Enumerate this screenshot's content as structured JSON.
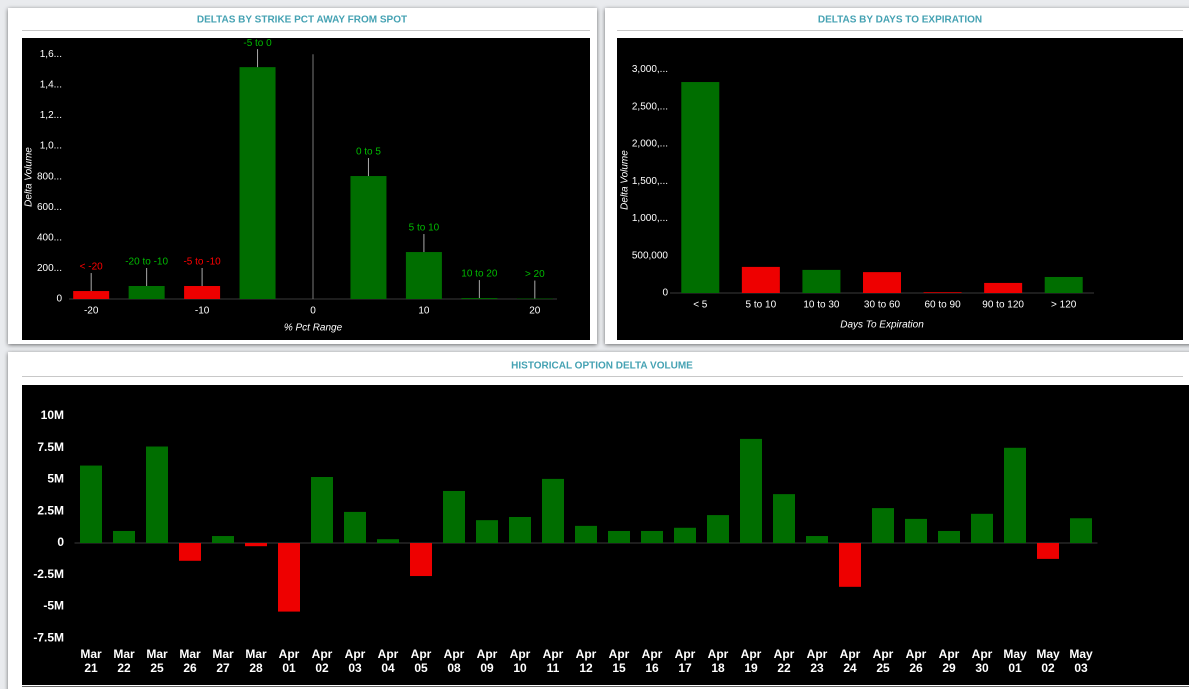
{
  "chart_data": [
    {
      "type": "bar",
      "title": "DELTAS BY STRIKE PCT AWAY FROM SPOT",
      "x_label": "% Pct Range",
      "y_label": "Delta Volume",
      "x": [
        -20,
        -15,
        -10,
        -5,
        5,
        10,
        15,
        20
      ],
      "labels": [
        "< -20",
        "-20 to -10",
        "-5 to -10",
        "-5 to 0",
        "0 to 5",
        "5 to 10",
        "10 to 20",
        "> 20"
      ],
      "values": [
        52000,
        85000,
        85000,
        1516000,
        804000,
        307000,
        6000,
        3000
      ],
      "colors": [
        "#ee0000",
        "#006e00",
        "#ee0000",
        "#006e00",
        "#006e00",
        "#006e00",
        "#006e00",
        "#006e00"
      ],
      "xlim": [
        -22,
        22
      ],
      "xticks": [
        -20,
        -10,
        0,
        10,
        20
      ],
      "ylim": [
        0,
        1700000
      ],
      "yticks": [
        0,
        {
          "value": 200000,
          "label": "200..."
        },
        {
          "value": 400000,
          "label": "400..."
        },
        {
          "value": 600000,
          "label": "600..."
        },
        {
          "value": 800000,
          "label": "800..."
        },
        {
          "value": 1000000,
          "label": "1,0..."
        },
        {
          "value": 1200000,
          "label": "1,2..."
        },
        {
          "value": 1400000,
          "label": "1,4..."
        },
        {
          "value": 1600000,
          "label": "1,6..."
        }
      ],
      "grid": false
    },
    {
      "type": "bar",
      "title": "DELTAS BY DAYS TO EXPIRATION",
      "x_label": "Days To Expiration",
      "y_label": "Delta Volume",
      "categories": [
        "< 5",
        "5 to 10",
        "10 to 30",
        "30 to 60",
        "60 to 90",
        "90 to 120",
        "> 120"
      ],
      "values": [
        2830000,
        350000,
        310000,
        280000,
        10000,
        135000,
        215000
      ],
      "colors": [
        "#006e00",
        "#ee0000",
        "#006e00",
        "#ee0000",
        "#ee0000",
        "#ee0000",
        "#006e00"
      ],
      "ylim": [
        0,
        3300000
      ],
      "yticks": [
        0,
        {
          "value": 500000,
          "label": "500,000"
        },
        {
          "value": 1000000,
          "label": "1,000,..."
        },
        {
          "value": 1500000,
          "label": "1,500,..."
        },
        {
          "value": 2000000,
          "label": "2,000,..."
        },
        {
          "value": 2500000,
          "label": "2,500,..."
        },
        {
          "value": 3000000,
          "label": "3,000,..."
        }
      ],
      "grid": false
    },
    {
      "type": "bar",
      "title": "HISTORICAL OPTION DELTA VOLUME",
      "categories": [
        "Mar 21",
        "Mar 22",
        "Mar 25",
        "Mar 26",
        "Mar 27",
        "Mar 28",
        "Apr 01",
        "Apr 02",
        "Apr 03",
        "Apr 04",
        "Apr 05",
        "Apr 08",
        "Apr 09",
        "Apr 10",
        "Apr 11",
        "Apr 12",
        "Apr 15",
        "Apr 16",
        "Apr 17",
        "Apr 18",
        "Apr 19",
        "Apr 22",
        "Apr 23",
        "Apr 24",
        "Apr 25",
        "Apr 26",
        "Apr 29",
        "Apr 30",
        "May 01",
        "May 02",
        "May 03"
      ],
      "values": [
        6100000,
        950000,
        7600000,
        -1400000,
        550000,
        -250000,
        -5400000,
        5200000,
        2450000,
        300000,
        -2600000,
        4100000,
        1800000,
        2050000,
        5050000,
        1350000,
        950000,
        950000,
        1200000,
        2200000,
        8200000,
        3850000,
        550000,
        -3450000,
        2750000,
        1900000,
        950000,
        2300000,
        7500000,
        -1250000,
        1950000
      ],
      "positive_color": "#006e00",
      "negative_color": "#ee0000",
      "ylim": [
        -8000000,
        11500000
      ],
      "yticks": [
        {
          "value": 10000000,
          "label": "10M"
        },
        {
          "value": 7500000,
          "label": "7.5M"
        },
        {
          "value": 5000000,
          "label": "5M"
        },
        {
          "value": 2500000,
          "label": "2.5M"
        },
        0,
        {
          "value": -2500000,
          "label": "-2.5M"
        },
        {
          "value": -5000000,
          "label": "-5M"
        },
        {
          "value": -7500000,
          "label": "-7.5M"
        }
      ],
      "grid": false
    }
  ]
}
